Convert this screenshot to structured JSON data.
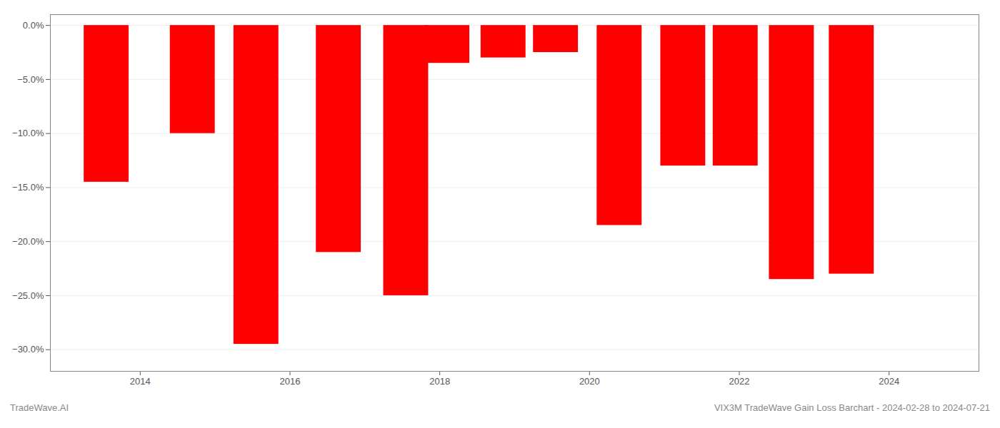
{
  "chart_data": {
    "type": "bar",
    "x": [
      2013.55,
      2014.7,
      2015.55,
      2016.65,
      2017.55,
      2018.1,
      2018.85,
      2019.55,
      2020.4,
      2021.25,
      2021.95,
      2022.7,
      2023.5
    ],
    "values": [
      -14.5,
      -10.0,
      -29.5,
      -21.0,
      -25.0,
      -3.5,
      -3.0,
      -2.5,
      -18.5,
      -13.0,
      -13.0,
      -23.5,
      -23.0
    ],
    "color": "#ff0000",
    "xlim": [
      2012.8,
      2025.2
    ],
    "xticks": [
      2014,
      2016,
      2018,
      2020,
      2022,
      2024
    ],
    "ylim": [
      -32,
      1.0
    ],
    "yticks": [
      {
        "value": 0.0,
        "label": "0.0%"
      },
      {
        "value": -5.0,
        "label": "−5.0%"
      },
      {
        "value": -10.0,
        "label": "−10.0%"
      },
      {
        "value": -15.0,
        "label": "−15.0%"
      },
      {
        "value": -20.0,
        "label": "−20.0%"
      },
      {
        "value": -25.0,
        "label": "−25.0%"
      },
      {
        "value": -30.0,
        "label": "−30.0%"
      }
    ],
    "grid": true,
    "annotations": [
      "TradeWave.AI",
      "VIX3M TradeWave Gain Loss Barchart - 2024-02-28 to 2024-07-21"
    ]
  }
}
